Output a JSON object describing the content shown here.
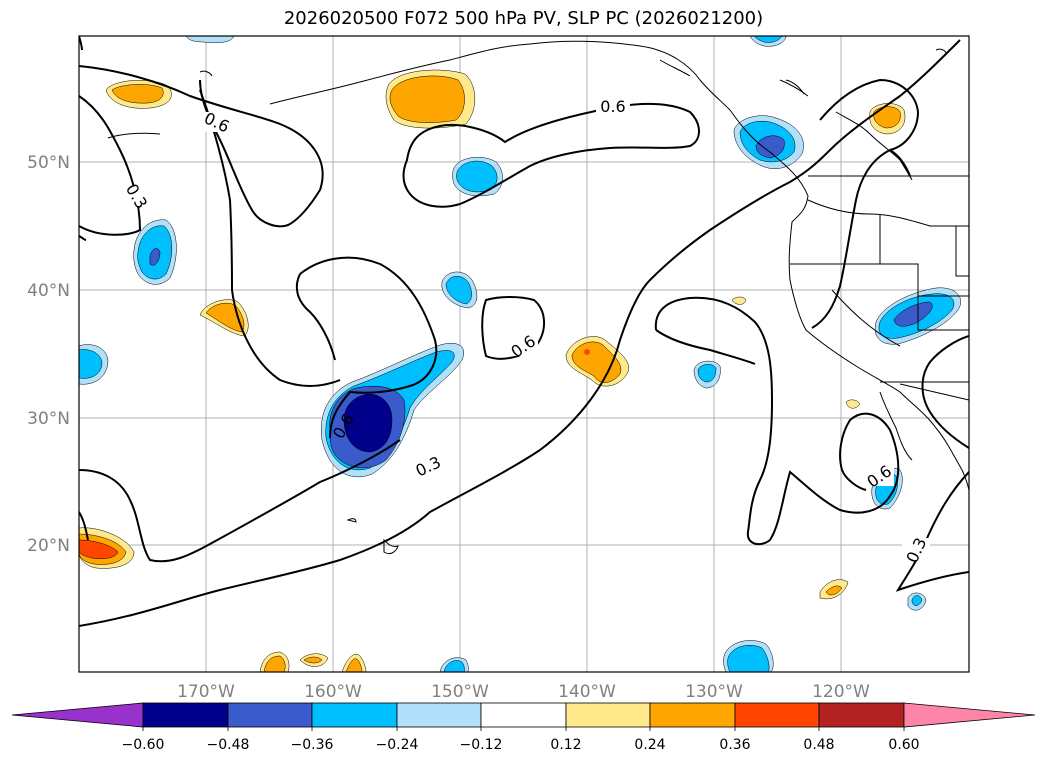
{
  "title": "2026020500 F072 500 hPa PV, SLP PC (2026021200)",
  "lat_labels": [
    "50°N",
    "40°N",
    "30°N",
    "20°N"
  ],
  "lon_labels": [
    "170°W",
    "160°W",
    "150°W",
    "140°W",
    "130°W",
    "120°W"
  ],
  "contour_labels": [
    "0.6",
    "0.3",
    "0.6",
    "0.6",
    "0.3",
    "0.6",
    "0.3"
  ],
  "colorbar": {
    "ticks": [
      "−0.60",
      "−0.48",
      "−0.36",
      "−0.24",
      "−0.12",
      "0.12",
      "0.24",
      "0.36",
      "0.48",
      "0.60"
    ],
    "colors": {
      "under": "#9932cc",
      "neg_060_048": "#00008b",
      "neg_048_036": "#3a5bcc",
      "neg_036_024": "#00bfff",
      "neg_024_012": "#b0e0fa",
      "zero_band": "#ffffff",
      "pos_012_024": "#ffe98a",
      "pos_024_036": "#ffa500",
      "pos_036_048": "#ff4500",
      "pos_048_060": "#b22222",
      "over": "#ff85a8"
    }
  }
}
